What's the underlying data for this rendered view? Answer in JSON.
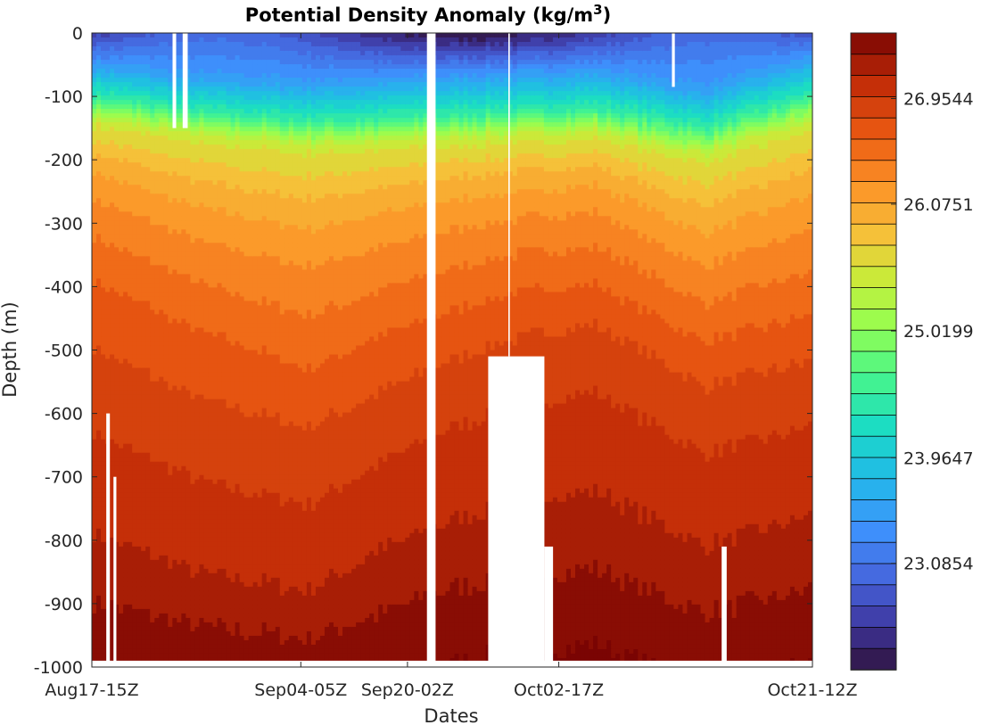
{
  "chart_data": {
    "type": "heatmap",
    "title": "Potential Density Anomaly (kg/m",
    "title_superscript": "3",
    "title_close": ")",
    "xlabel": "Dates",
    "ylabel": "Depth  (m)",
    "x_ticks": [
      "Aug17-15Z",
      "Sep04-05Z",
      "Sep20-02Z",
      "Oct02-17Z",
      "Oct21-12Z"
    ],
    "y_ticks": [
      0,
      -100,
      -200,
      -300,
      -400,
      -500,
      -600,
      -700,
      -800,
      -900,
      -1000
    ],
    "ylim": [
      -1000,
      0
    ],
    "colorbar": {
      "ticks": [
        "26.9544",
        "26.0751",
        "25.0199",
        "23.9647",
        "23.0854"
      ],
      "tick_values": [
        26.9544,
        26.0751,
        25.0199,
        23.9647,
        23.0854
      ],
      "range": [
        22.2,
        27.5
      ],
      "levels": 30,
      "colormap": "turbo"
    },
    "profiles": {
      "description_values": "isopycnal depths (m, positive down) for density levels at selected time fractions",
      "times": [
        0.0,
        0.15,
        0.3,
        0.4,
        0.5,
        0.6,
        0.7,
        0.85,
        1.0
      ],
      "isopycnals": [
        {
          "sigma": 23.5,
          "depths": [
            50,
            70,
            80,
            75,
            70,
            65,
            60,
            90,
            40
          ]
        },
        {
          "sigma": 24.5,
          "depths": [
            100,
            125,
            140,
            135,
            130,
            125,
            120,
            150,
            100
          ]
        },
        {
          "sigma": 25.5,
          "depths": [
            140,
            165,
            180,
            175,
            170,
            165,
            160,
            195,
            145
          ]
        },
        {
          "sigma": 26.0,
          "depths": [
            200,
            250,
            280,
            260,
            240,
            230,
            220,
            290,
            230
          ]
        },
        {
          "sigma": 26.3,
          "depths": [
            270,
            340,
            380,
            350,
            320,
            300,
            290,
            380,
            320
          ]
        },
        {
          "sigma": 26.6,
          "depths": [
            380,
            460,
            520,
            470,
            430,
            400,
            390,
            480,
            440
          ]
        },
        {
          "sigma": 26.9,
          "depths": [
            560,
            640,
            680,
            620,
            560,
            520,
            500,
            600,
            560
          ]
        },
        {
          "sigma": 27.1,
          "depths": [
            760,
            830,
            860,
            790,
            740,
            700,
            690,
            780,
            730
          ]
        },
        {
          "sigma": 27.3,
          "depths": [
            880,
            920,
            940,
            900,
            860,
            840,
            830,
            900,
            860
          ]
        }
      ]
    },
    "gaps": [
      {
        "t0": 0.112,
        "t1": 0.117,
        "z0": 0,
        "z1": 150
      },
      {
        "t0": 0.126,
        "t1": 0.133,
        "z0": 0,
        "z1": 150
      },
      {
        "t0": 0.465,
        "t1": 0.477,
        "z0": 0,
        "z1": 1000
      },
      {
        "t0": 0.55,
        "t1": 0.628,
        "z0": 510,
        "z1": 1000
      },
      {
        "t0": 0.628,
        "t1": 0.64,
        "z0": 810,
        "z1": 1000
      },
      {
        "t0": 0.578,
        "t1": 0.58,
        "z0": 0,
        "z1": 510
      },
      {
        "t0": 0.805,
        "t1": 0.809,
        "z0": 0,
        "z1": 85
      },
      {
        "t0": 0.874,
        "t1": 0.881,
        "z0": 810,
        "z1": 1000
      },
      {
        "t0": 0.02,
        "t1": 0.025,
        "z0": 600,
        "z1": 1000
      },
      {
        "t0": 0.03,
        "t1": 0.034,
        "z0": 700,
        "z1": 1000
      }
    ]
  }
}
